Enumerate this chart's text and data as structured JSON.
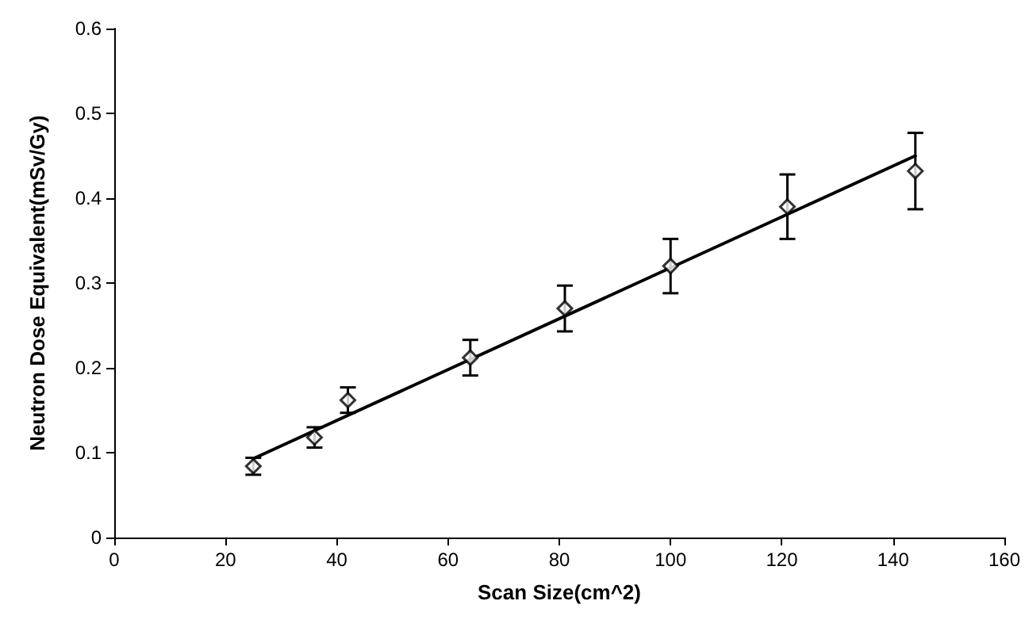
{
  "chart_data": {
    "type": "scatter",
    "xlabel": "Scan Size(cm^2)",
    "ylabel": "Neutron Dose Equivalent(mSv/Gy)",
    "xlim": [
      0,
      160
    ],
    "xticks": [
      0,
      20,
      40,
      60,
      80,
      100,
      120,
      140,
      160
    ],
    "ylim": [
      0,
      0.6
    ],
    "yticks": [
      0,
      0.1,
      0.2,
      0.3,
      0.4,
      0.5,
      0.6
    ],
    "grid": false,
    "marker": "diamond",
    "series": [
      {
        "color": "#000000",
        "x": [
          25,
          36,
          42,
          64,
          81,
          100,
          121,
          144
        ],
        "values": [
          0.084,
          0.118,
          0.162,
          0.212,
          0.27,
          0.32,
          0.39,
          0.432
        ],
        "errors": [
          0.01,
          0.012,
          0.015,
          0.021,
          0.027,
          0.032,
          0.038,
          0.045
        ]
      },
      {
        "type": "line",
        "color": "#000000",
        "marker": "none",
        "line_style": "solid",
        "x": [
          25,
          144
        ],
        "values": [
          0.093,
          0.45
        ]
      }
    ]
  }
}
